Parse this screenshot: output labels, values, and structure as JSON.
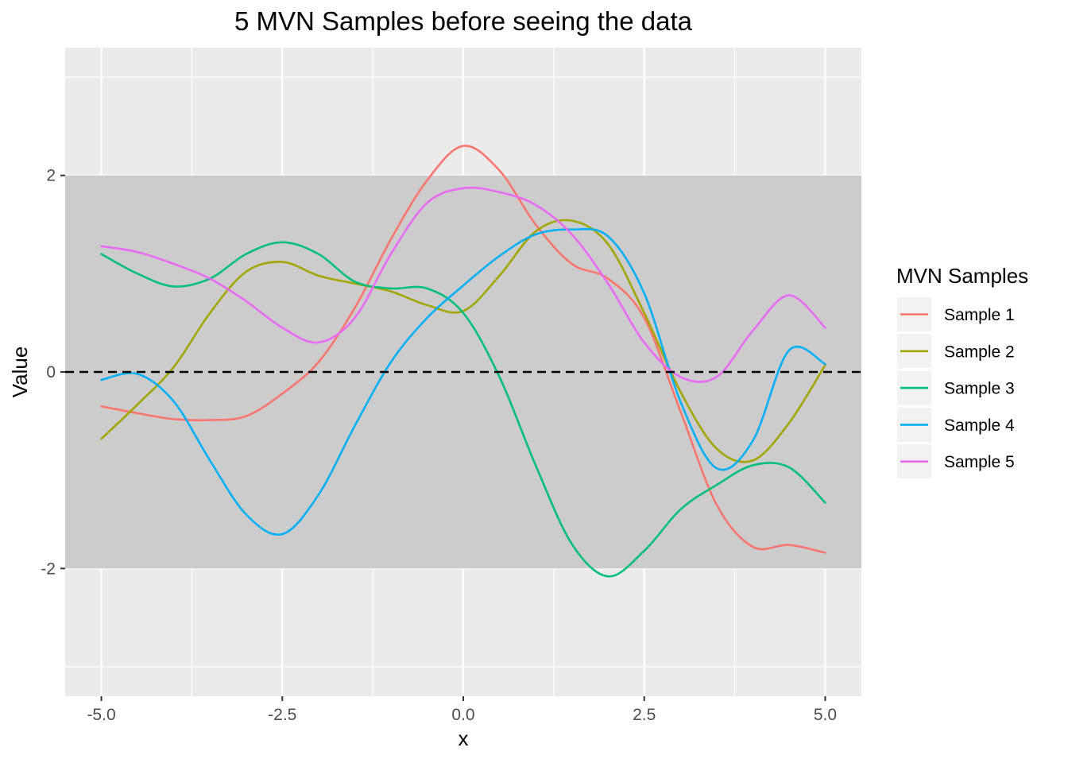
{
  "chart_data": {
    "type": "line",
    "title": "5 MVN Samples before seeing the data",
    "xlabel": "x",
    "ylabel": "Value",
    "xlim": [
      -5.5,
      5.5
    ],
    "ylim": [
      -3.3,
      3.3
    ],
    "x_ticks": [
      -5,
      -2.5,
      0,
      2.5,
      5
    ],
    "x_tick_labels": [
      "-5.0",
      "-2.5",
      "0.0",
      "2.5",
      "5.0"
    ],
    "y_ticks": [
      -2,
      0,
      2
    ],
    "y_tick_labels": [
      "-2",
      "0",
      "2"
    ],
    "grid": true,
    "band": {
      "ymin": -2,
      "ymax": 2,
      "color": "#cccccc"
    },
    "reference_line": {
      "y": 0,
      "style": "dashed",
      "color": "#000000"
    },
    "legend": {
      "title": "MVN Samples",
      "position": "right"
    },
    "series": [
      {
        "name": "Sample 1",
        "color": "#F8766D",
        "x": [
          -5.0,
          -4.5,
          -4.0,
          -3.5,
          -3.0,
          -2.5,
          -2.0,
          -1.5,
          -1.0,
          -0.5,
          0.0,
          0.5,
          1.0,
          1.5,
          2.0,
          2.5,
          3.0,
          3.5,
          4.0,
          4.5,
          5.0
        ],
        "y": [
          -0.35,
          -0.42,
          -0.48,
          -0.49,
          -0.45,
          -0.22,
          0.1,
          0.65,
          1.35,
          1.95,
          2.3,
          2.05,
          1.5,
          1.1,
          0.95,
          0.55,
          -0.4,
          -1.35,
          -1.78,
          -1.76,
          -1.84
        ]
      },
      {
        "name": "Sample 2",
        "color": "#A3A500",
        "x": [
          -5.0,
          -4.5,
          -4.0,
          -3.5,
          -3.0,
          -2.5,
          -2.0,
          -1.5,
          -1.0,
          -0.5,
          0.0,
          0.5,
          1.0,
          1.5,
          2.0,
          2.5,
          3.0,
          3.5,
          4.0,
          4.5,
          5.0
        ],
        "y": [
          -0.68,
          -0.33,
          0.05,
          0.6,
          1.02,
          1.12,
          0.98,
          0.9,
          0.82,
          0.68,
          0.62,
          0.98,
          1.43,
          1.54,
          1.3,
          0.6,
          -0.2,
          -0.78,
          -0.9,
          -0.52,
          0.07
        ]
      },
      {
        "name": "Sample 3",
        "color": "#00BF7D",
        "x": [
          -5.0,
          -4.5,
          -4.0,
          -3.5,
          -3.0,
          -2.5,
          -2.0,
          -1.5,
          -1.0,
          -0.5,
          0.0,
          0.5,
          1.0,
          1.5,
          2.0,
          2.5,
          3.0,
          3.5,
          4.0,
          4.5,
          5.0
        ],
        "y": [
          1.2,
          1.0,
          0.87,
          0.95,
          1.2,
          1.32,
          1.2,
          0.92,
          0.85,
          0.85,
          0.6,
          -0.05,
          -0.95,
          -1.75,
          -2.08,
          -1.82,
          -1.4,
          -1.15,
          -0.95,
          -0.97,
          -1.33
        ]
      },
      {
        "name": "Sample 4",
        "color": "#00B0F6",
        "x": [
          -5.0,
          -4.5,
          -4.0,
          -3.5,
          -3.0,
          -2.5,
          -2.0,
          -1.5,
          -1.0,
          -0.5,
          0.0,
          0.5,
          1.0,
          1.5,
          2.0,
          2.5,
          3.0,
          3.5,
          4.0,
          4.5,
          5.0
        ],
        "y": [
          -0.08,
          -0.02,
          -0.3,
          -0.9,
          -1.45,
          -1.65,
          -1.25,
          -0.55,
          0.1,
          0.55,
          0.88,
          1.18,
          1.4,
          1.45,
          1.38,
          0.8,
          -0.3,
          -0.98,
          -0.7,
          0.22,
          0.08
        ]
      },
      {
        "name": "Sample 5",
        "color": "#E76BF3",
        "x": [
          -5.0,
          -4.5,
          -4.0,
          -3.5,
          -3.0,
          -2.5,
          -2.0,
          -1.5,
          -1.0,
          -0.5,
          0.0,
          0.5,
          1.0,
          1.5,
          2.0,
          2.5,
          3.0,
          3.5,
          4.0,
          4.5,
          5.0
        ],
        "y": [
          1.28,
          1.22,
          1.1,
          0.95,
          0.72,
          0.45,
          0.3,
          0.55,
          1.2,
          1.72,
          1.87,
          1.83,
          1.7,
          1.4,
          0.9,
          0.3,
          -0.05,
          -0.05,
          0.42,
          0.78,
          0.45
        ]
      }
    ]
  }
}
